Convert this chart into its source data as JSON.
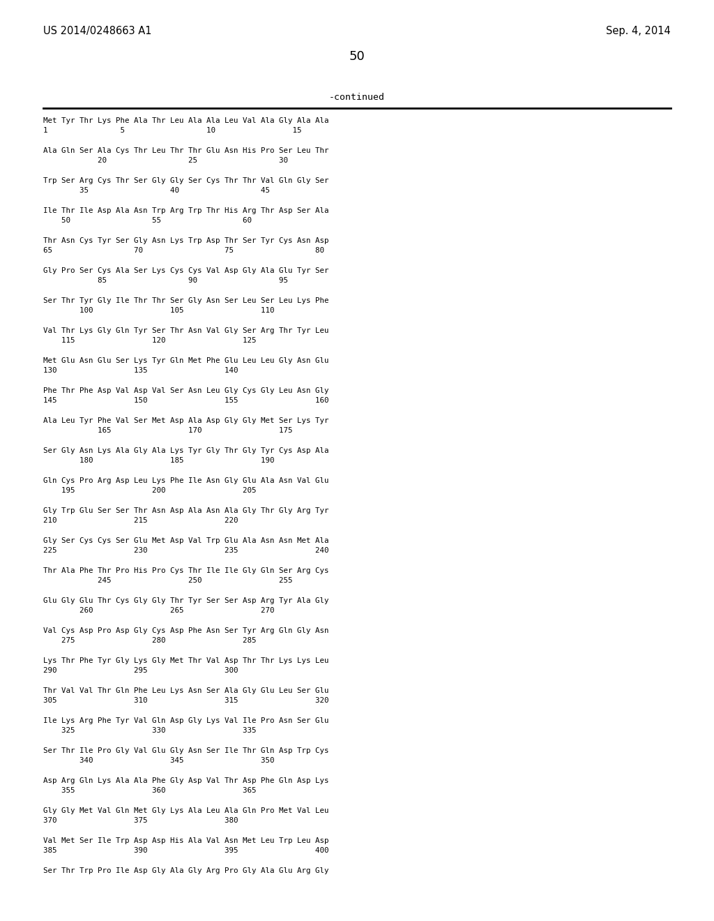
{
  "header_left": "US 2014/0248663 A1",
  "header_right": "Sep. 4, 2014",
  "page_number": "50",
  "continued_label": "-continued",
  "bg": "#ffffff",
  "fg": "#000000",
  "sequence_blocks": [
    [
      "Met Tyr Thr Lys Phe Ala Thr Leu Ala Ala Leu Val Ala Gly Ala Ala",
      "1                5                  10                 15"
    ],
    [
      "Ala Gln Ser Ala Cys Thr Leu Thr Thr Glu Asn His Pro Ser Leu Thr",
      "            20                  25                  30"
    ],
    [
      "Trp Ser Arg Cys Thr Ser Gly Gly Ser Cys Thr Thr Val Gln Gly Ser",
      "        35                  40                  45"
    ],
    [
      "Ile Thr Ile Asp Ala Asn Trp Arg Trp Thr His Arg Thr Asp Ser Ala",
      "    50                  55                  60"
    ],
    [
      "Thr Asn Cys Tyr Ser Gly Asn Lys Trp Asp Thr Ser Tyr Cys Asn Asp",
      "65                  70                  75                  80"
    ],
    [
      "Gly Pro Ser Cys Ala Ser Lys Cys Cys Val Asp Gly Ala Glu Tyr Ser",
      "            85                  90                  95"
    ],
    [
      "Ser Thr Tyr Gly Ile Thr Thr Ser Gly Asn Ser Leu Ser Leu Lys Phe",
      "        100                 105                 110"
    ],
    [
      "Val Thr Lys Gly Gln Tyr Ser Thr Asn Val Gly Ser Arg Thr Tyr Leu",
      "    115                 120                 125"
    ],
    [
      "Met Glu Asn Glu Ser Lys Tyr Gln Met Phe Glu Leu Leu Gly Asn Glu",
      "130                 135                 140"
    ],
    [
      "Phe Thr Phe Asp Val Asp Val Ser Asn Leu Gly Cys Gly Leu Asn Gly",
      "145                 150                 155                 160"
    ],
    [
      "Ala Leu Tyr Phe Val Ser Met Asp Ala Asp Gly Gly Met Ser Lys Tyr",
      "            165                 170                 175"
    ],
    [
      "Ser Gly Asn Lys Ala Gly Ala Lys Tyr Gly Thr Gly Tyr Cys Asp Ala",
      "        180                 185                 190"
    ],
    [
      "Gln Cys Pro Arg Asp Leu Lys Phe Ile Asn Gly Glu Ala Asn Val Glu",
      "    195                 200                 205"
    ],
    [
      "Gly Trp Glu Ser Ser Thr Asn Asp Ala Asn Ala Gly Thr Gly Arg Tyr",
      "210                 215                 220"
    ],
    [
      "Gly Ser Cys Cys Ser Glu Met Asp Val Trp Glu Ala Asn Asn Met Ala",
      "225                 230                 235                 240"
    ],
    [
      "Thr Ala Phe Thr Pro His Pro Cys Thr Ile Ile Gly Gln Ser Arg Cys",
      "            245                 250                 255"
    ],
    [
      "Glu Gly Glu Thr Cys Gly Gly Thr Tyr Ser Ser Asp Arg Tyr Ala Gly",
      "        260                 265                 270"
    ],
    [
      "Val Cys Asp Pro Asp Gly Cys Asp Phe Asn Ser Tyr Arg Gln Gly Asn",
      "    275                 280                 285"
    ],
    [
      "Lys Thr Phe Tyr Gly Lys Gly Met Thr Val Asp Thr Thr Lys Lys Leu",
      "290                 295                 300"
    ],
    [
      "Thr Val Val Thr Gln Phe Leu Lys Asn Ser Ala Gly Glu Leu Ser Glu",
      "305                 310                 315                 320"
    ],
    [
      "Ile Lys Arg Phe Tyr Val Gln Asp Gly Lys Val Ile Pro Asn Ser Glu",
      "    325                 330                 335"
    ],
    [
      "Ser Thr Ile Pro Gly Val Glu Gly Asn Ser Ile Thr Gln Asp Trp Cys",
      "        340                 345                 350"
    ],
    [
      "Asp Arg Gln Lys Ala Ala Phe Gly Asp Val Thr Asp Phe Gln Asp Lys",
      "    355                 360                 365"
    ],
    [
      "Gly Gly Met Val Gln Met Gly Lys Ala Leu Ala Gln Pro Met Val Leu",
      "370                 375                 380"
    ],
    [
      "Val Met Ser Ile Trp Asp Asp His Ala Val Asn Met Leu Trp Leu Asp",
      "385                 390                 395                 400"
    ],
    [
      "Ser Thr Trp Pro Ile Asp Gly Ala Gly Arg Pro Gly Ala Glu Arg Gly",
      ""
    ]
  ]
}
